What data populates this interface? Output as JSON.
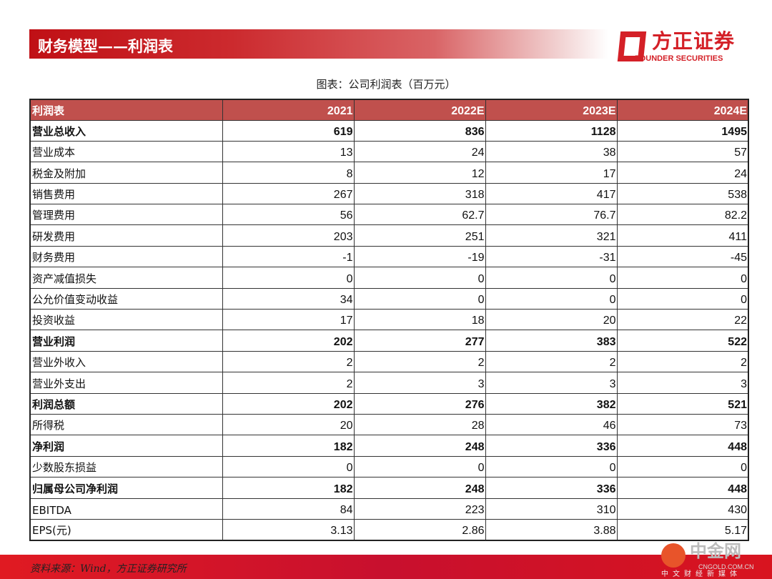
{
  "header": {
    "title": "财务模型——利润表",
    "logo_cn": "方正证券",
    "logo_en": "FOUNDER SECURITIES"
  },
  "caption": "图表：公司利润表（百万元）",
  "table": {
    "columns": [
      "利润表",
      "2021",
      "2022E",
      "2023E",
      "2024E"
    ],
    "rows": [
      {
        "label": "营业总收入",
        "values": [
          "619",
          "836",
          "1128",
          "1495"
        ],
        "bold": true
      },
      {
        "label": "营业成本",
        "values": [
          "13",
          "24",
          "38",
          "57"
        ]
      },
      {
        "label": "税金及附加",
        "values": [
          "8",
          "12",
          "17",
          "24"
        ]
      },
      {
        "label": "销售费用",
        "values": [
          "267",
          "318",
          "417",
          "538"
        ]
      },
      {
        "label": "管理费用",
        "values": [
          "56",
          "62.7",
          "76.7",
          "82.2"
        ]
      },
      {
        "label": "研发费用",
        "values": [
          "203",
          "251",
          "321",
          "411"
        ]
      },
      {
        "label": "财务费用",
        "values": [
          "-1",
          "-19",
          "-31",
          "-45"
        ]
      },
      {
        "label": "资产减值损失",
        "values": [
          "0",
          "0",
          "0",
          "0"
        ]
      },
      {
        "label": "公允价值变动收益",
        "values": [
          "34",
          "0",
          "0",
          "0"
        ]
      },
      {
        "label": "投资收益",
        "values": [
          "17",
          "18",
          "20",
          "22"
        ]
      },
      {
        "label": "营业利润",
        "values": [
          "202",
          "277",
          "383",
          "522"
        ],
        "bold": true
      },
      {
        "label": "营业外收入",
        "values": [
          "2",
          "2",
          "2",
          "2"
        ]
      },
      {
        "label": "营业外支出",
        "values": [
          "2",
          "3",
          "3",
          "3"
        ]
      },
      {
        "label": "利润总额",
        "values": [
          "202",
          "276",
          "382",
          "521"
        ],
        "bold": true
      },
      {
        "label": "所得税",
        "values": [
          "20",
          "28",
          "46",
          "73"
        ]
      },
      {
        "label": "净利润",
        "values": [
          "182",
          "248",
          "336",
          "448"
        ],
        "bold": true
      },
      {
        "label": "少数股东损益",
        "values": [
          "0",
          "0",
          "0",
          "0"
        ]
      },
      {
        "label": "归属母公司净利润",
        "values": [
          "182",
          "248",
          "336",
          "448"
        ],
        "bold": true
      },
      {
        "label": "EBITDA",
        "values": [
          "84",
          "223",
          "310",
          "430"
        ]
      },
      {
        "label": "EPS(元)",
        "values": [
          "3.13",
          "2.86",
          "3.88",
          "5.17"
        ]
      }
    ]
  },
  "footer": {
    "source": "资料来源：Wind，方正证券研究所"
  },
  "watermark": {
    "name": "中金网",
    "url": "CNGOLD.COM.CN",
    "tagline": "中文财经新媒体"
  },
  "colors": {
    "brand_red": "#c01015",
    "header_fill": "#c0504d"
  }
}
